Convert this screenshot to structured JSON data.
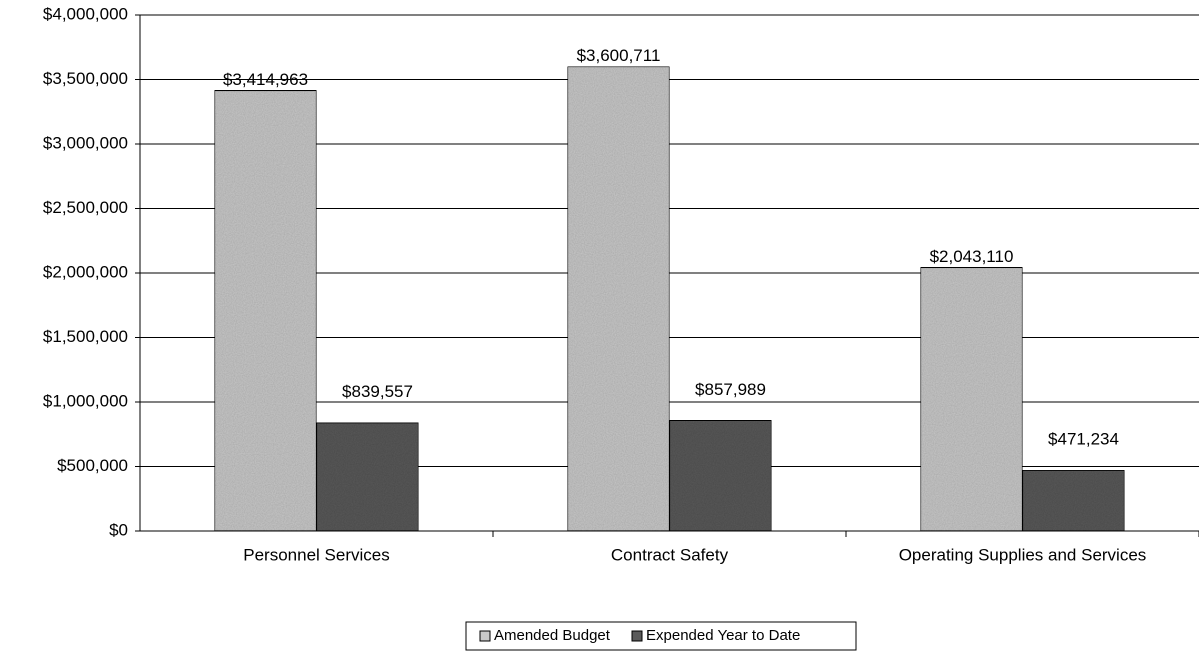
{
  "chart_data": {
    "type": "bar",
    "categories": [
      "Personnel Services",
      "Contract Safety",
      "Operating Supplies and Services"
    ],
    "series": [
      {
        "name": "Amended Budget",
        "color": "#c9c9c9",
        "values": [
          3414963,
          3600711,
          2043110
        ],
        "value_labels": [
          "$3,414,963",
          "$3,600,711",
          "$2,043,110"
        ]
      },
      {
        "name": "Expended Year to Date",
        "color": "#5a5a5a",
        "values": [
          839557,
          857989,
          471234
        ],
        "value_labels": [
          "$839,557",
          "$857,989",
          "$471,234"
        ]
      }
    ],
    "ylim": [
      0,
      4000000
    ],
    "yticks": [
      {
        "value": 0,
        "label": "$0"
      },
      {
        "value": 500000,
        "label": "$500,000"
      },
      {
        "value": 1000000,
        "label": "$1,000,000"
      },
      {
        "value": 1500000,
        "label": "$1,500,000"
      },
      {
        "value": 2000000,
        "label": "$2,000,000"
      },
      {
        "value": 2500000,
        "label": "$2,500,000"
      },
      {
        "value": 3000000,
        "label": "$3,000,000"
      },
      {
        "value": 3500000,
        "label": "$3,500,000"
      },
      {
        "value": 4000000,
        "label": "$4,000,000"
      }
    ],
    "grid": true,
    "legend": "bottom"
  }
}
